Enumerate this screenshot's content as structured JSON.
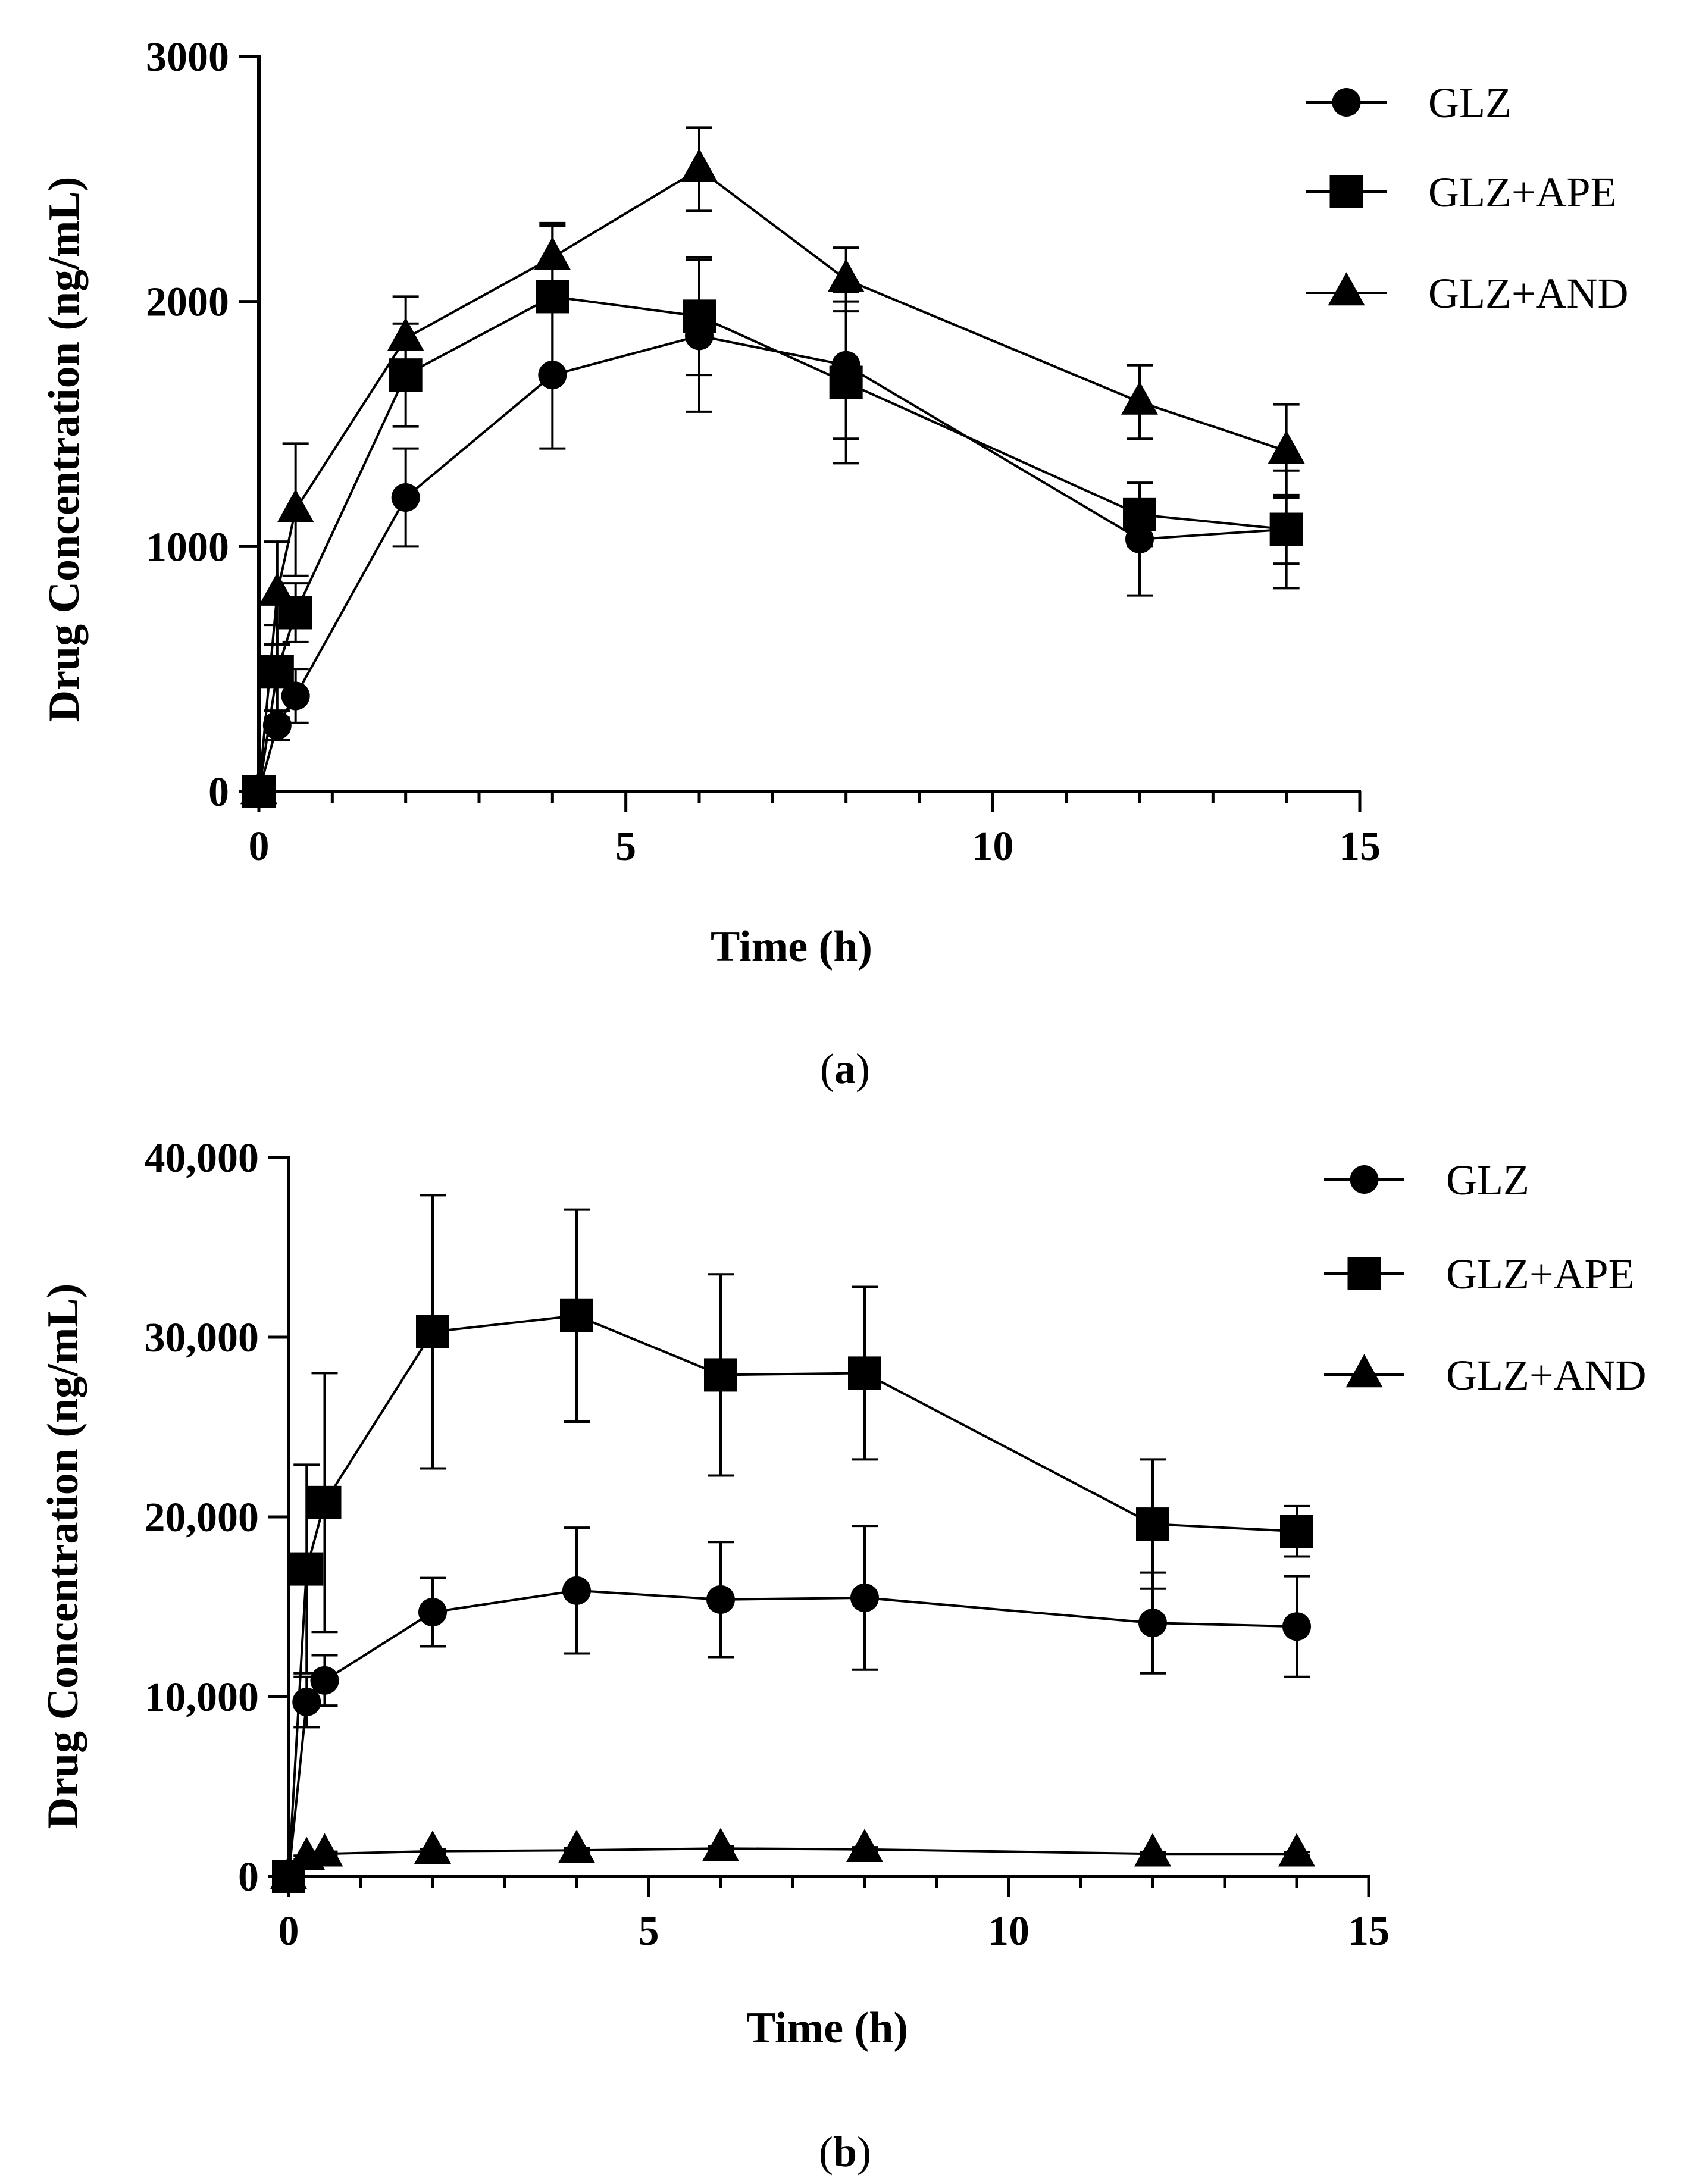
{
  "chart_data": [
    {
      "type": "line",
      "panel": "a",
      "caption_letter": "a",
      "x": [
        0,
        0.25,
        0.5,
        2,
        4,
        6,
        8,
        12,
        14
      ],
      "xlabel": "Time (h)",
      "ylabel": "Drug Concentration (ng/mL)",
      "xlim": [
        0,
        15
      ],
      "ylim": [
        0,
        3000
      ],
      "xticks": [
        0,
        5,
        10,
        15
      ],
      "xtick_labels": [
        "0",
        "5",
        "10",
        "15"
      ],
      "yticks": [
        0,
        1000,
        2000,
        3000
      ],
      "ytick_labels": [
        "0",
        "1000",
        "2000",
        "3000"
      ],
      "grid": false,
      "legend_position": "top-right",
      "series": [
        {
          "name": "GLZ",
          "marker": "circle",
          "values": [
            0,
            270,
            390,
            1200,
            1700,
            1860,
            1740,
            1030,
            1070
          ],
          "errors": [
            0,
            60,
            110,
            200,
            300,
            310,
            300,
            230,
            140
          ]
        },
        {
          "name": "GLZ+APE",
          "marker": "square",
          "values": [
            0,
            490,
            730,
            1700,
            2020,
            1940,
            1670,
            1130,
            1070
          ],
          "errors": [
            0,
            190,
            120,
            210,
            300,
            240,
            330,
            130,
            240
          ]
        },
        {
          "name": "GLZ+AND",
          "marker": "triangle",
          "values": [
            0,
            810,
            1150,
            1850,
            2180,
            2540,
            2090,
            1590,
            1390
          ],
          "errors": [
            0,
            210,
            270,
            170,
            130,
            170,
            130,
            150,
            190
          ]
        }
      ]
    },
    {
      "type": "line",
      "panel": "b",
      "caption_letter": "b",
      "x": [
        0,
        0.25,
        0.5,
        2,
        4,
        6,
        8,
        12,
        14
      ],
      "xlabel": "Time (h)",
      "ylabel": "Drug Concentration (ng/mL)",
      "xlim": [
        0,
        15
      ],
      "ylim": [
        0,
        40000
      ],
      "xticks": [
        0,
        5,
        10,
        15
      ],
      "xtick_labels": [
        "0",
        "5",
        "10",
        "15"
      ],
      "yticks": [
        0,
        10000,
        20000,
        30000,
        40000
      ],
      "ytick_labels": [
        "0",
        "10,000",
        "20,000",
        "30,000",
        "40,000"
      ],
      "grid": false,
      "legend_position": "top-right",
      "series": [
        {
          "name": "GLZ",
          "marker": "circle",
          "values": [
            0,
            9700,
            10900,
            14700,
            15900,
            15400,
            15500,
            14100,
            13900
          ],
          "errors": [
            0,
            1400,
            1400,
            1900,
            3500,
            3200,
            4000,
            2800,
            2800
          ]
        },
        {
          "name": "GLZ+APE",
          "marker": "square",
          "values": [
            0,
            17100,
            20800,
            30300,
            31200,
            27900,
            28000,
            19600,
            19200
          ],
          "errors": [
            0,
            5800,
            7200,
            7600,
            5900,
            5600,
            4800,
            3600,
            1400
          ]
        },
        {
          "name": "GLZ+AND",
          "marker": "triangle",
          "values": [
            0,
            1050,
            1250,
            1400,
            1450,
            1550,
            1500,
            1250,
            1250
          ],
          "errors": [
            0,
            100,
            120,
            120,
            120,
            120,
            120,
            100,
            100
          ]
        }
      ]
    }
  ]
}
